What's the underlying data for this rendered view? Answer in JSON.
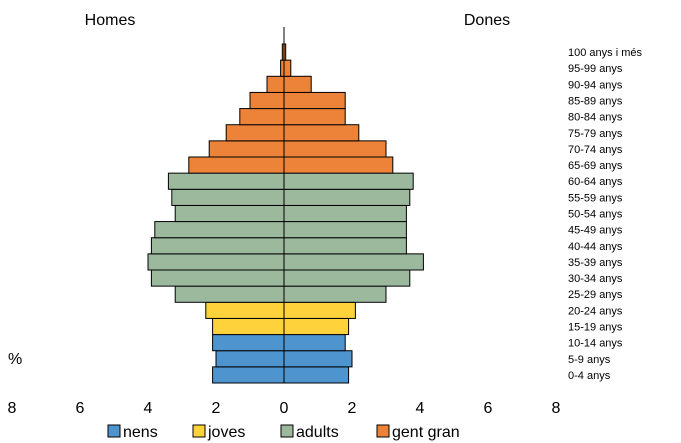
{
  "chart_data": {
    "type": "bar",
    "orientation": "horizontal-population-pyramid",
    "left_label": "Homes",
    "right_label": "Dones",
    "unit_label": "%",
    "xlim": [
      -8,
      8
    ],
    "x_ticks": [
      -8,
      -6,
      -4,
      -2,
      0,
      2,
      4,
      6,
      8
    ],
    "x_tick_labels": [
      "8",
      "6",
      "4",
      "2",
      "0",
      "2",
      "4",
      "6",
      "8"
    ],
    "categories": [
      "0-4 anys",
      "5-9 anys",
      "10-14 anys",
      "15-19 anys",
      "20-24 anys",
      "25-29 anys",
      "30-34 anys",
      "35-39 anys",
      "40-44 anys",
      "45-49 anys",
      "50-54 anys",
      "55-59 anys",
      "60-64 anys",
      "65-69 anys",
      "70-74 anys",
      "75-79 anys",
      "80-84 anys",
      "85-89 anys",
      "90-94 anys",
      "95-99 anys",
      "100 anys i més"
    ],
    "group_of_category": [
      "nens",
      "nens",
      "nens",
      "joves",
      "joves",
      "adults",
      "adults",
      "adults",
      "adults",
      "adults",
      "adults",
      "adults",
      "adults",
      "gent gran",
      "gent gran",
      "gent gran",
      "gent gran",
      "gent gran",
      "gent gran",
      "gent gran",
      "gent gran"
    ],
    "groups": [
      {
        "name": "nens",
        "color": "#4e94cf"
      },
      {
        "name": "joves",
        "color": "#fdd23a"
      },
      {
        "name": "adults",
        "color": "#9cb99e"
      },
      {
        "name": "gent gran",
        "color": "#ec8338"
      }
    ],
    "series": [
      {
        "side": "left",
        "values": [
          2.1,
          2.0,
          2.1,
          2.1,
          2.3,
          3.2,
          3.9,
          4.0,
          3.9,
          3.8,
          3.2,
          3.3,
          3.4,
          2.8,
          2.2,
          1.7,
          1.3,
          1.0,
          0.5,
          0.1,
          0.05
        ]
      },
      {
        "side": "right",
        "values": [
          1.9,
          2.0,
          1.8,
          1.9,
          2.1,
          3.0,
          3.7,
          4.1,
          3.6,
          3.6,
          3.6,
          3.7,
          3.8,
          3.2,
          3.0,
          2.2,
          1.8,
          1.8,
          0.8,
          0.2,
          0.05
        ]
      }
    ],
    "grid": false,
    "legend_position": "bottom"
  }
}
